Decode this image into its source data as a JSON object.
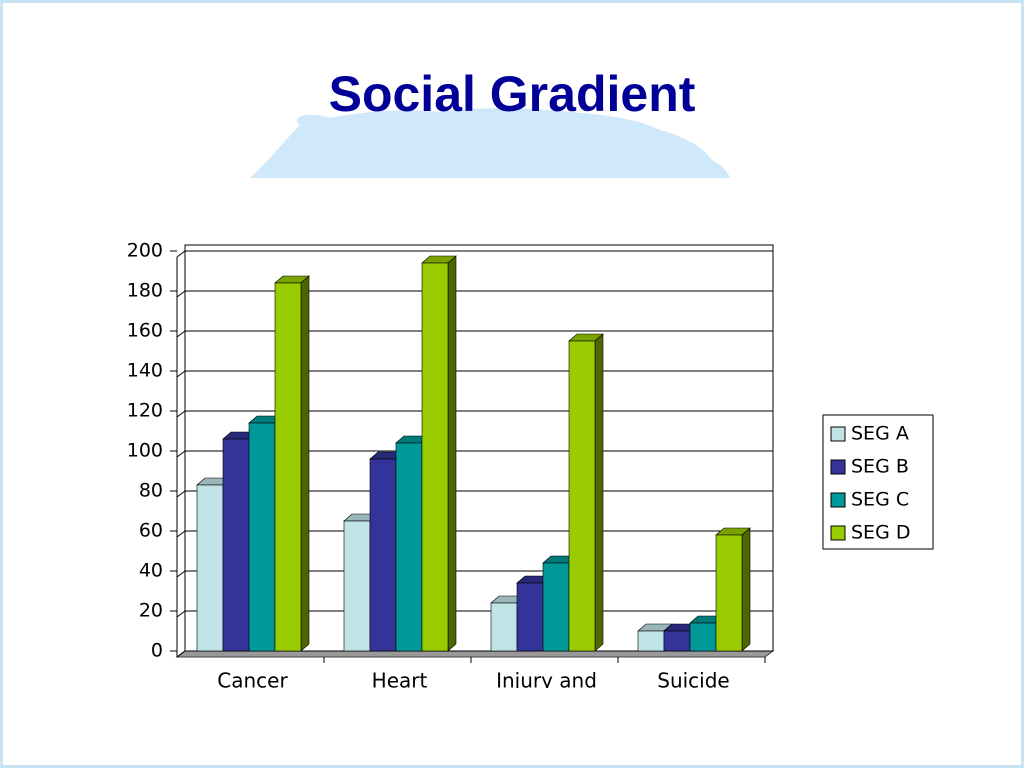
{
  "chart_data": {
    "type": "bar",
    "title": "Social Gradient",
    "categories": [
      "Cancer",
      "Heart",
      "Injury and",
      "Suicide"
    ],
    "series": [
      {
        "name": "SEG A",
        "color": "#bfe3e6",
        "values": [
          83,
          65,
          24,
          10
        ]
      },
      {
        "name": "SEG B",
        "color": "#333399",
        "values": [
          106,
          96,
          34,
          10
        ]
      },
      {
        "name": "SEG C",
        "color": "#009999",
        "values": [
          114,
          104,
          44,
          14
        ]
      },
      {
        "name": "SEG D",
        "color": "#99cc00",
        "values": [
          184,
          194,
          155,
          58
        ]
      }
    ],
    "ylim": [
      0,
      200
    ],
    "yticks": [
      0,
      20,
      40,
      60,
      80,
      100,
      120,
      140,
      160,
      180,
      200
    ],
    "grid": true,
    "legend": "right"
  }
}
